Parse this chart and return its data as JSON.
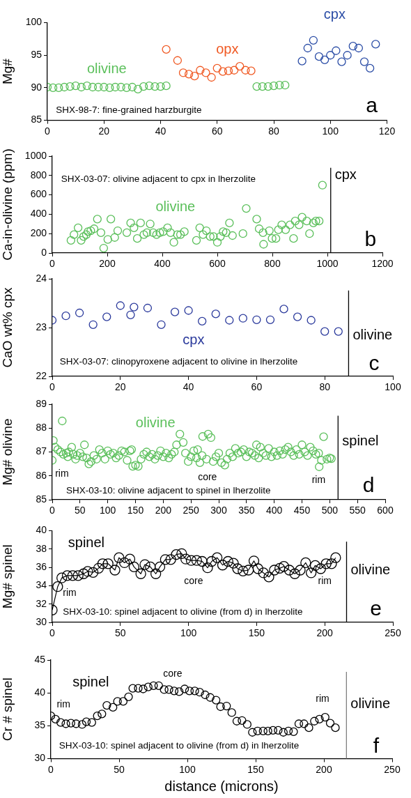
{
  "chart_data": [
    {
      "type": "scatter",
      "ylabel": "Mg#",
      "xlim": [
        0,
        120
      ],
      "ylim": [
        85,
        100
      ],
      "xticks": [
        0,
        20,
        40,
        60,
        80,
        100,
        120
      ],
      "yticks": [
        85,
        90,
        95,
        100
      ],
      "marker": "circle",
      "series": [
        {
          "name": "olivine",
          "color": "#5abf5a",
          "x": [
            0,
            2,
            4,
            6,
            8,
            10,
            12,
            14,
            16,
            18,
            20,
            22,
            24,
            26,
            28,
            30,
            32,
            34,
            36,
            38,
            40,
            42,
            74,
            76,
            78,
            80,
            82,
            84
          ],
          "values": [
            90.1,
            90,
            90,
            90.1,
            90.2,
            90.3,
            90.1,
            90.3,
            90.1,
            90.1,
            90.1,
            90,
            90.1,
            90.1,
            90,
            90.1,
            89.8,
            90.2,
            90.3,
            90.2,
            90.2,
            90.3,
            90.2,
            90.2,
            90.2,
            90.3,
            90.4,
            90.4
          ]
        },
        {
          "name": "opx",
          "color": "#f05a24",
          "x": [
            42,
            46,
            48,
            50,
            52,
            54,
            56,
            58,
            60,
            62,
            64,
            66,
            68,
            70,
            72
          ],
          "values": [
            95.9,
            94.2,
            92.3,
            92.1,
            91.8,
            92.7,
            92.3,
            91.6,
            93.0,
            92.5,
            92.6,
            92.7,
            93.3,
            92.7,
            92.6
          ]
        },
        {
          "name": "cpx",
          "color": "#2b4da6",
          "x": [
            90,
            92,
            94,
            96,
            98,
            100,
            102,
            104,
            106,
            108,
            110,
            112,
            114,
            116
          ],
          "values": [
            94.1,
            96.1,
            97.3,
            94.8,
            94.3,
            95.0,
            95.7,
            94.0,
            95.0,
            96.4,
            96.1,
            94.0,
            93.0,
            96.7
          ]
        }
      ],
      "annotations": [
        "SHX-98-7: fine-grained harzburgite",
        "a"
      ]
    },
    {
      "type": "scatter",
      "ylabel": "Ca-in-olivine (ppm)",
      "xlim": [
        0,
        1200
      ],
      "ylim": [
        0,
        1000
      ],
      "xticks": [
        0,
        200,
        400,
        600,
        800,
        1000,
        1200
      ],
      "yticks": [
        0,
        200,
        400,
        600,
        800,
        1000
      ],
      "marker": "circle",
      "series": [
        {
          "name": "olivine",
          "color": "#5abf5a",
          "x": [
            68,
            79,
            94,
            105,
            114,
            124,
            130,
            140,
            152,
            164,
            177,
            187,
            202,
            213,
            227,
            238,
            271,
            285,
            297,
            309,
            321,
            333,
            344,
            356,
            367,
            379,
            391,
            403,
            419,
            430,
            442,
            455,
            466,
            480,
            524,
            536,
            548,
            560,
            574,
            586,
            600,
            611,
            621,
            632,
            644,
            655,
            693,
            705,
            743,
            752,
            766,
            768,
            789,
            799,
            813,
            822,
            834,
            848,
            864,
            877,
            883,
            897,
            908,
            925,
            935,
            949,
            958,
            970,
            982
          ],
          "values": [
            130,
            190,
            260,
            130,
            170,
            190,
            220,
            230,
            250,
            350,
            210,
            50,
            140,
            350,
            160,
            230,
            210,
            310,
            260,
            150,
            310,
            190,
            210,
            300,
            210,
            190,
            210,
            220,
            260,
            210,
            110,
            190,
            190,
            220,
            130,
            260,
            190,
            230,
            170,
            170,
            110,
            170,
            220,
            210,
            310,
            180,
            200,
            460,
            350,
            250,
            210,
            90,
            230,
            150,
            150,
            240,
            290,
            240,
            290,
            150,
            330,
            290,
            370,
            330,
            200,
            310,
            330,
            330,
            700
          ]
        }
      ],
      "ref_lines": [
        {
          "axis": "x",
          "value": 1012,
          "label": "cpx",
          "color": "#000000"
        }
      ],
      "annotations": [
        "SHX-03-07: olivine adjacent to cpx in lherzolite",
        "b"
      ]
    },
    {
      "type": "scatter",
      "ylabel": "CaO wt% cpx",
      "xlim": [
        0,
        100
      ],
      "ylim": [
        22,
        24
      ],
      "xticks": [
        0,
        20,
        40,
        60,
        80,
        100
      ],
      "yticks": [
        22,
        23,
        24
      ],
      "marker": "circle",
      "series": [
        {
          "name": "cpx",
          "color": "#2b3a9c",
          "x": [
            0,
            4,
            8,
            12,
            16,
            20,
            23,
            24,
            28,
            32,
            36,
            40,
            44,
            48,
            52,
            56,
            60,
            64,
            68,
            72,
            76,
            80,
            84
          ],
          "values": [
            23.15,
            23.24,
            23.3,
            23.06,
            23.22,
            23.45,
            23.26,
            23.42,
            23.4,
            23.06,
            23.32,
            23.35,
            23.13,
            23.28,
            23.15,
            23.19,
            23.16,
            23.16,
            23.38,
            23.22,
            23.15,
            22.92,
            22.92
          ]
        }
      ],
      "ref_lines": [
        {
          "axis": "x",
          "value": 87,
          "label": "olivine",
          "color": "#000000"
        }
      ],
      "annotations": [
        "SHX-03-07: clinopyroxene adjacent to olivine in lherzolite",
        "c"
      ]
    },
    {
      "type": "scatter",
      "ylabel": "Mg# olivine",
      "xlim": [
        0,
        600
      ],
      "ylim": [
        85,
        89
      ],
      "xticks": [
        0,
        50,
        100,
        150,
        200,
        250,
        300,
        350,
        400,
        450,
        500,
        550,
        600
      ],
      "yticks": [
        85,
        86,
        87,
        88,
        89
      ],
      "marker": "circle",
      "series": [
        {
          "name": "olivine",
          "color": "#5abf5a",
          "x": [
            0,
            2,
            5,
            10,
            15,
            18,
            20,
            25,
            28,
            30,
            35,
            38,
            42,
            45,
            50,
            55,
            58,
            62,
            66,
            70,
            75,
            80,
            85,
            90,
            95,
            100,
            105,
            110,
            115,
            120,
            125,
            130,
            135,
            140,
            143,
            145,
            150,
            155,
            160,
            165,
            170,
            175,
            180,
            185,
            190,
            195,
            200,
            205,
            210,
            215,
            220,
            224,
            230,
            236,
            240,
            245,
            250,
            255,
            260,
            262,
            266,
            270,
            271,
            278,
            281,
            286,
            290,
            295,
            300,
            305,
            311,
            315,
            320,
            325,
            330,
            335,
            340,
            345,
            350,
            355,
            360,
            365,
            368,
            372,
            375,
            380,
            385,
            390,
            395,
            400,
            405,
            410,
            415,
            420,
            425,
            430,
            435,
            440,
            445,
            450,
            455,
            460,
            465,
            470,
            475,
            480,
            481,
            485,
            489,
            495,
            500,
            503
          ],
          "values": [
            86.65,
            87.48,
            87.2,
            87.1,
            87.0,
            88.3,
            86.9,
            86.95,
            86.8,
            87.0,
            87.2,
            86.9,
            86.7,
            86.85,
            86.95,
            86.8,
            87.3,
            86.75,
            86.5,
            86.6,
            86.85,
            86.7,
            87.1,
            86.95,
            86.7,
            87.05,
            86.9,
            86.95,
            86.75,
            86.85,
            87.05,
            87.0,
            86.65,
            87.05,
            87.1,
            86.4,
            86.45,
            86.4,
            86.7,
            86.9,
            87.0,
            86.8,
            86.9,
            86.7,
            86.85,
            87.05,
            86.8,
            86.95,
            86.75,
            86.9,
            87.0,
            87.3,
            87.75,
            87.4,
            86.95,
            86.6,
            86.8,
            87.05,
            86.75,
            87.1,
            86.55,
            86.85,
            87.65,
            86.7,
            87.75,
            87.6,
            86.6,
            86.8,
            86.95,
            86.55,
            86.45,
            86.7,
            86.95,
            86.8,
            87.15,
            86.95,
            87.0,
            87.1,
            86.8,
            87.0,
            86.95,
            86.85,
            87.3,
            86.75,
            87.2,
            86.95,
            86.85,
            87.15,
            86.8,
            87.0,
            86.85,
            87.05,
            86.9,
            87.1,
            87.2,
            87.0,
            86.85,
            87.1,
            86.9,
            87.3,
            87.0,
            86.85,
            87.2,
            87.05,
            86.9,
            86.95,
            86.38,
            86.65,
            87.64,
            86.7,
            86.75,
            86.72
          ]
        }
      ],
      "ref_lines": [
        {
          "axis": "x",
          "value": 515,
          "label": "spinel",
          "color": "#000000"
        }
      ],
      "annotations": [
        "SHX-03-10: olivine adjacent to spinel in lherzolite",
        "d",
        "rim",
        "core",
        "rim"
      ]
    },
    {
      "type": "line",
      "ylabel": "Mg# spinel",
      "xlim": [
        0,
        250
      ],
      "ylim": [
        30,
        40
      ],
      "xticks": [
        0,
        50,
        100,
        150,
        200,
        250
      ],
      "yticks": [
        30,
        32,
        34,
        36,
        38,
        40
      ],
      "marker": "circle",
      "line_style": "solid",
      "series": [
        {
          "name": "spinel",
          "color": "#000000",
          "x": [
            0,
            4,
            7,
            11,
            15,
            19,
            23,
            26,
            30,
            34,
            37,
            41,
            46,
            49,
            53,
            57,
            60,
            65,
            68,
            72,
            76,
            79,
            83,
            87,
            91,
            95,
            98,
            102,
            106,
            110,
            114,
            117,
            121,
            125,
            129,
            133,
            136,
            140,
            144,
            148,
            151,
            155,
            159,
            163,
            167,
            170,
            174,
            178,
            182,
            186,
            190,
            193,
            197,
            201,
            205,
            208
          ],
          "values": [
            31.35,
            33.9,
            34.85,
            35.1,
            35.1,
            35.1,
            35.3,
            35.55,
            35.45,
            35.9,
            36.4,
            36.4,
            35.7,
            37.05,
            36.5,
            36.9,
            36.05,
            35.3,
            36.3,
            36.05,
            35.3,
            36.05,
            36.85,
            36.85,
            37.4,
            37.5,
            36.9,
            36.75,
            36.75,
            36.65,
            35.95,
            36.65,
            37.05,
            36.25,
            36.65,
            36.45,
            35.85,
            35.6,
            35.7,
            36.7,
            35.85,
            35.4,
            34.95,
            35.7,
            35.9,
            36.1,
            35.7,
            35.3,
            35.7,
            36.5,
            35.4,
            36.2,
            35.85,
            36.4,
            36.4,
            37.05
          ]
        }
      ],
      "ref_lines": [
        {
          "axis": "x",
          "value": 216,
          "label": "olivine",
          "color": "#000000"
        }
      ],
      "annotations": [
        "SHX-03-10: spinel adjacent to olivine (from d) in lherzolite",
        "e",
        "rim",
        "core",
        "rim"
      ]
    },
    {
      "type": "scatter",
      "xlabel": "distance (microns)",
      "ylabel": "Cr # spinel",
      "xlim": [
        0,
        250
      ],
      "ylim": [
        30,
        45
      ],
      "xticks": [
        0,
        50,
        100,
        150,
        200,
        250
      ],
      "yticks": [
        30,
        35,
        40,
        45
      ],
      "marker": "circle",
      "series": [
        {
          "name": "spinel",
          "color": "#000000",
          "x": [
            0,
            3.4,
            7.2,
            11,
            14.7,
            18.5,
            22.9,
            26,
            30,
            34,
            37.4,
            41,
            45.5,
            48.8,
            53,
            56.9,
            60,
            64,
            67.6,
            71.3,
            75.2,
            79,
            83,
            86.5,
            90.3,
            94,
            98,
            101.5,
            105.4,
            109,
            113,
            116.7,
            121,
            124.3,
            128.7,
            132.5,
            136.2,
            140,
            143.8,
            147.6,
            151.4,
            155.5,
            159,
            162.7,
            166.5,
            170.3,
            174,
            177.8,
            181.6,
            185.4,
            189,
            193,
            196.7,
            200.9,
            204.6,
            208.4
          ],
          "values": [
            36.5,
            36.0,
            35.5,
            35.3,
            35.4,
            35.3,
            35.2,
            35.6,
            35.5,
            36.5,
            36.8,
            38.1,
            37.8,
            38.7,
            38.7,
            39.4,
            40.7,
            40.7,
            40.6,
            40.9,
            41.1,
            41.1,
            40.5,
            40.5,
            40.3,
            40.2,
            40.6,
            40.3,
            40.3,
            40.1,
            39.7,
            39.3,
            38.9,
            37.9,
            38.0,
            37.0,
            35.7,
            35.8,
            35.2,
            34.0,
            34.2,
            34.2,
            34.2,
            34.3,
            34.3,
            34.0,
            34.2,
            34.1,
            35.3,
            35.3,
            34.7,
            35.7,
            36.0,
            36.3,
            35.4,
            34.7
          ]
        }
      ],
      "ref_lines": [
        {
          "axis": "x",
          "value": 216.5,
          "label": "olivine",
          "color": "#808080"
        }
      ],
      "annotations": [
        "SHX-03-10: spinel adjacent to olivine (from d) in lherzolite",
        "f",
        "rim",
        "core",
        "rim"
      ]
    }
  ]
}
